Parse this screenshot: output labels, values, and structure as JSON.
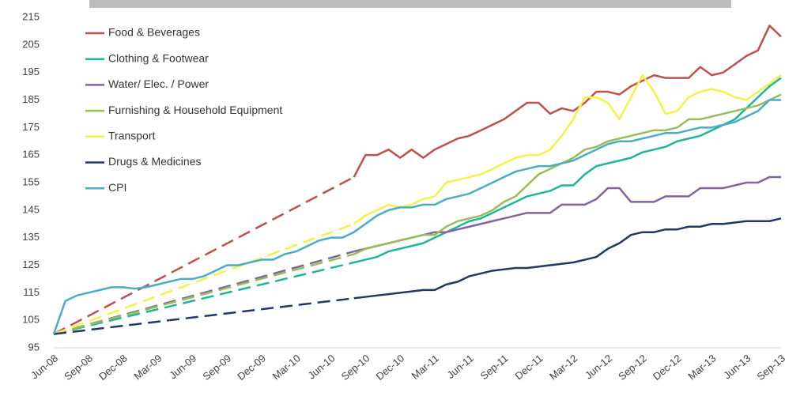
{
  "chart_data": {
    "type": "line",
    "categories": [
      "Jun-08",
      null,
      null,
      "Sep-08",
      null,
      null,
      "Dec-08",
      null,
      null,
      "Mar-09",
      null,
      null,
      "Jun-09",
      null,
      null,
      "Sep-09",
      null,
      null,
      "Dec-09",
      null,
      null,
      "Mar-10",
      null,
      null,
      "Jun-10",
      null,
      null,
      "Sep-10",
      null,
      null,
      "Dec-10",
      null,
      null,
      "Mar-11",
      null,
      null,
      "Jun-11",
      null,
      null,
      "Sep-11",
      null,
      null,
      "Dec-11",
      null,
      null,
      "Mar-12",
      null,
      null,
      "Jun-12",
      null,
      null,
      "Sep-12",
      null,
      null,
      "Dec-12",
      null,
      null,
      "Mar-13",
      null,
      null,
      "Jun-13",
      null,
      null,
      "Sep-13"
    ],
    "ylim": [
      95,
      215
    ],
    "yticks": [
      95,
      105,
      115,
      125,
      135,
      145,
      155,
      165,
      175,
      185,
      195,
      205,
      215
    ],
    "gaps": "dashed",
    "legend": "upper left",
    "series": [
      {
        "name": "Food & Beverages",
        "color": "#c0504d",
        "values": [
          100,
          null,
          null,
          null,
          null,
          null,
          null,
          null,
          null,
          null,
          null,
          null,
          null,
          null,
          null,
          null,
          null,
          null,
          null,
          null,
          null,
          null,
          null,
          null,
          null,
          null,
          157,
          165,
          165,
          167,
          164,
          167,
          164,
          167,
          169,
          171,
          172,
          174,
          176,
          178,
          181,
          184,
          184,
          180,
          182,
          181,
          184,
          188,
          188,
          187,
          190,
          192,
          194,
          193,
          193,
          193,
          197,
          194,
          195,
          198,
          201,
          203,
          212,
          208
        ]
      },
      {
        "name": "Clothing & Footwear",
        "color": "#1fb59b",
        "values": [
          100,
          null,
          null,
          null,
          null,
          null,
          null,
          null,
          null,
          null,
          null,
          null,
          null,
          null,
          null,
          null,
          null,
          null,
          null,
          null,
          null,
          null,
          null,
          null,
          null,
          null,
          126,
          127,
          128,
          130,
          131,
          132,
          133,
          135,
          137,
          139,
          141,
          142,
          144,
          146,
          148,
          150,
          151,
          152,
          154,
          154,
          158,
          161,
          162,
          163,
          164,
          166,
          167,
          168,
          170,
          171,
          172,
          174,
          176,
          178,
          182,
          186,
          190,
          193
        ]
      },
      {
        "name": "Water/ Elec. / Power",
        "color": "#8064a2",
        "values": [
          100,
          null,
          null,
          null,
          null,
          null,
          null,
          null,
          null,
          null,
          null,
          null,
          null,
          null,
          null,
          null,
          null,
          null,
          null,
          null,
          null,
          null,
          null,
          null,
          null,
          null,
          130,
          131,
          132,
          133,
          134,
          135,
          136,
          137,
          137,
          138,
          139,
          140,
          141,
          142,
          143,
          144,
          144,
          144,
          147,
          147,
          147,
          149,
          153,
          153,
          148,
          148,
          148,
          150,
          150,
          150,
          153,
          153,
          153,
          154,
          155,
          155,
          157,
          157
        ]
      },
      {
        "name": "Furnishing & Household Equipment",
        "color": "#9bbb59",
        "values": [
          100,
          null,
          null,
          null,
          null,
          null,
          null,
          null,
          null,
          null,
          null,
          null,
          null,
          null,
          null,
          null,
          null,
          null,
          null,
          null,
          null,
          null,
          null,
          null,
          null,
          null,
          129,
          131,
          132,
          133,
          134,
          135,
          136,
          136,
          139,
          141,
          142,
          143,
          145,
          148,
          150,
          154,
          158,
          160,
          162,
          164,
          167,
          168,
          170,
          171,
          172,
          173,
          174,
          174,
          175,
          178,
          178,
          179,
          180,
          181,
          182,
          183,
          185,
          187
        ]
      },
      {
        "name": "Transport",
        "color": "#f2f24a",
        "values": [
          100,
          null,
          null,
          null,
          null,
          null,
          null,
          null,
          null,
          null,
          null,
          null,
          null,
          null,
          null,
          null,
          null,
          null,
          null,
          null,
          null,
          null,
          null,
          null,
          null,
          null,
          140,
          143,
          145,
          147,
          146,
          147,
          149,
          150,
          155,
          156,
          157,
          158,
          160,
          162,
          164,
          165,
          165,
          167,
          172,
          178,
          186,
          186,
          184,
          178,
          186,
          194,
          188,
          180,
          181,
          186,
          188,
          189,
          188,
          186,
          185,
          188,
          191,
          194
        ]
      },
      {
        "name": "Drugs & Medicines",
        "color": "#1f3864",
        "values": [
          100,
          null,
          null,
          null,
          null,
          null,
          null,
          null,
          null,
          null,
          null,
          null,
          null,
          null,
          null,
          null,
          null,
          null,
          null,
          null,
          null,
          null,
          null,
          null,
          null,
          null,
          113,
          113.5,
          114,
          114.5,
          115,
          115.5,
          116,
          116,
          118,
          119,
          121,
          122,
          123,
          123.5,
          124,
          124,
          124.5,
          125,
          125.5,
          126,
          127,
          128,
          131,
          133,
          136,
          137,
          137,
          138,
          138,
          139,
          139,
          140,
          140,
          140.5,
          141,
          141,
          141,
          142
        ]
      },
      {
        "name": "CPI",
        "color": "#4bacc6",
        "values": [
          100,
          112,
          114,
          115,
          116,
          117,
          117,
          116.5,
          117,
          118,
          119,
          120,
          120,
          121,
          123,
          125,
          125,
          126,
          127,
          127,
          129,
          130,
          132,
          134,
          135,
          135,
          137,
          140,
          143,
          145,
          146,
          146,
          147,
          147,
          149,
          150,
          151,
          153,
          155,
          157,
          159,
          160,
          161,
          161,
          162,
          163,
          165,
          167,
          169,
          170,
          170,
          171,
          172,
          173,
          173,
          174,
          175,
          175,
          176,
          177,
          179,
          181,
          185,
          185
        ]
      }
    ]
  }
}
